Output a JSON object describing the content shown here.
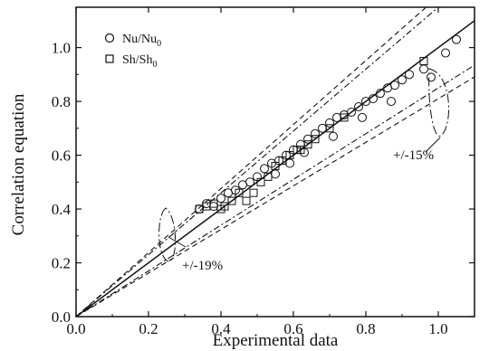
{
  "chart_data": {
    "type": "scatter",
    "title": "",
    "xlabel": "Experimental data",
    "ylabel": "Correlation equation",
    "xlim": [
      0.0,
      1.1
    ],
    "ylim": [
      0.0,
      1.15
    ],
    "xticks": [
      0.0,
      0.2,
      0.4,
      0.6,
      0.8,
      1.0
    ],
    "xtick_labels": [
      "0.0",
      "0.2",
      "0.4",
      "0.6",
      "0.8",
      "1.0"
    ],
    "yticks": [
      0.0,
      0.2,
      0.4,
      0.6,
      0.8,
      1.0
    ],
    "ytick_labels": [
      "0.0",
      "0.2",
      "0.4",
      "0.6",
      "0.8",
      "1.0"
    ],
    "grid": false,
    "legend_position": "top-left",
    "series": [
      {
        "name": "Nu/Nu0",
        "label_main": "Nu/Nu",
        "label_sub": "0",
        "marker": "circle",
        "x": [
          0.34,
          0.36,
          0.38,
          0.4,
          0.42,
          0.44,
          0.46,
          0.48,
          0.5,
          0.52,
          0.54,
          0.56,
          0.58,
          0.6,
          0.62,
          0.64,
          0.66,
          0.68,
          0.7,
          0.72,
          0.74,
          0.76,
          0.78,
          0.8,
          0.82,
          0.84,
          0.86,
          0.88,
          0.9,
          0.92,
          0.96,
          0.98,
          1.02,
          1.05,
          0.55,
          0.63,
          0.71,
          0.79,
          0.87,
          0.59
        ],
        "y": [
          0.4,
          0.42,
          0.41,
          0.44,
          0.46,
          0.47,
          0.49,
          0.5,
          0.52,
          0.55,
          0.57,
          0.58,
          0.6,
          0.62,
          0.64,
          0.66,
          0.68,
          0.7,
          0.72,
          0.74,
          0.75,
          0.76,
          0.78,
          0.8,
          0.81,
          0.83,
          0.85,
          0.86,
          0.88,
          0.9,
          0.92,
          0.89,
          0.98,
          1.03,
          0.53,
          0.61,
          0.67,
          0.74,
          0.8,
          0.57
        ]
      },
      {
        "name": "Sh/Sh0",
        "label_main": "Sh/Sh",
        "label_sub": "0",
        "marker": "square",
        "x": [
          0.34,
          0.36,
          0.38,
          0.4,
          0.41,
          0.43,
          0.45,
          0.47,
          0.49,
          0.51,
          0.53,
          0.55,
          0.57,
          0.59,
          0.61,
          0.62,
          0.64,
          0.66,
          0.7,
          0.74,
          0.96
        ],
        "y": [
          0.4,
          0.41,
          0.42,
          0.4,
          0.41,
          0.43,
          0.46,
          0.43,
          0.46,
          0.5,
          0.52,
          0.56,
          0.58,
          0.6,
          0.62,
          0.62,
          0.64,
          0.66,
          0.7,
          0.74,
          0.95
        ]
      }
    ],
    "reference_lines": {
      "identity": {
        "x": [
          0.0,
          1.1
        ],
        "y": [
          0.0,
          1.1
        ]
      },
      "band_15_percent": {
        "factors": [
          1.15,
          0.85
        ],
        "label": "+/-15%"
      },
      "band_19_percent": {
        "factors": [
          1.19,
          0.81
        ],
        "label": "+/-19%"
      }
    }
  }
}
